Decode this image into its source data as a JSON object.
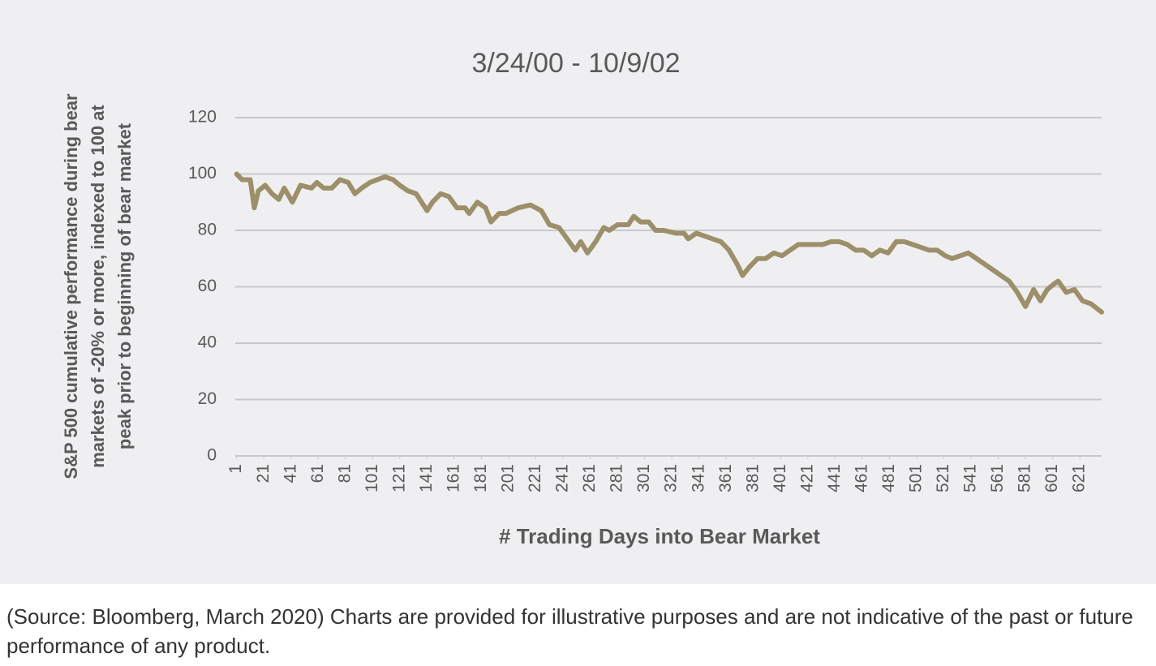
{
  "chart_data": {
    "type": "line",
    "title": "3/24/00 - 10/9/02",
    "ylabel": [
      "S&P 500 cumulative performance during bear",
      "markets of -20% or more, indexed to 100 at",
      "peak prior to beginning of bear market"
    ],
    "xlabel": "# Trading Days into Bear Market",
    "x": [
      1,
      5,
      11,
      14,
      17,
      22,
      27,
      32,
      36,
      42,
      48,
      56,
      60,
      65,
      71,
      77,
      83,
      88,
      93,
      99,
      110,
      116,
      121,
      127,
      133,
      141,
      145,
      151,
      157,
      163,
      169,
      172,
      178,
      184,
      188,
      194,
      199,
      208,
      217,
      225,
      231,
      238,
      244,
      250,
      254,
      259,
      265,
      271,
      275,
      281,
      289,
      293,
      298,
      304,
      309,
      315,
      324,
      330,
      333,
      339,
      345,
      351,
      357,
      363,
      369,
      373,
      378,
      384,
      390,
      396,
      402,
      408,
      414,
      420,
      426,
      432,
      438,
      444,
      450,
      456,
      462,
      468,
      474,
      480,
      486,
      492,
      498,
      504,
      510,
      516,
      522,
      527,
      533,
      539,
      545,
      551,
      557,
      563,
      569,
      575,
      581,
      587,
      592,
      597,
      602,
      605,
      611,
      617,
      623,
      629,
      637
    ],
    "series": [
      {
        "name": "S&P 500",
        "color": "#9c8f6a",
        "values": [
          100,
          98,
          98,
          88,
          94,
          96,
          93,
          91,
          95,
          90,
          96,
          95,
          97,
          95,
          95,
          98,
          97,
          93,
          95,
          97,
          99,
          98,
          96,
          94,
          93,
          87,
          90,
          93,
          92,
          88,
          88,
          86,
          90,
          88,
          83,
          86,
          86,
          88,
          89,
          87,
          82,
          81,
          77,
          73,
          76,
          72,
          76,
          81,
          80,
          82,
          82,
          85,
          83,
          83,
          80,
          80,
          79,
          79,
          77,
          79,
          78,
          77,
          76,
          73,
          68,
          64,
          67,
          70,
          70,
          72,
          71,
          73,
          75,
          75,
          75,
          75,
          76,
          76,
          75,
          73,
          73,
          71,
          73,
          72,
          76,
          76,
          75,
          74,
          73,
          73,
          71,
          70,
          71,
          72,
          70,
          68,
          66,
          64,
          62,
          58,
          53,
          59,
          55,
          59,
          61,
          62,
          58,
          59,
          55,
          54,
          51
        ]
      }
    ],
    "xlim": [
      0,
      637
    ],
    "xticks": [
      1,
      21,
      41,
      61,
      81,
      101,
      121,
      141,
      161,
      181,
      201,
      221,
      241,
      261,
      281,
      301,
      321,
      341,
      361,
      381,
      401,
      421,
      441,
      461,
      481,
      501,
      521,
      541,
      561,
      581,
      601,
      621
    ],
    "ylim": [
      0,
      120
    ],
    "yticks": [
      0,
      20,
      40,
      60,
      80,
      100,
      120
    ],
    "grid": true
  },
  "footer": "(Source: Bloomberg, March 2020) Charts are provided for illustrative purposes and are not indicative of the past or future performance of any product."
}
